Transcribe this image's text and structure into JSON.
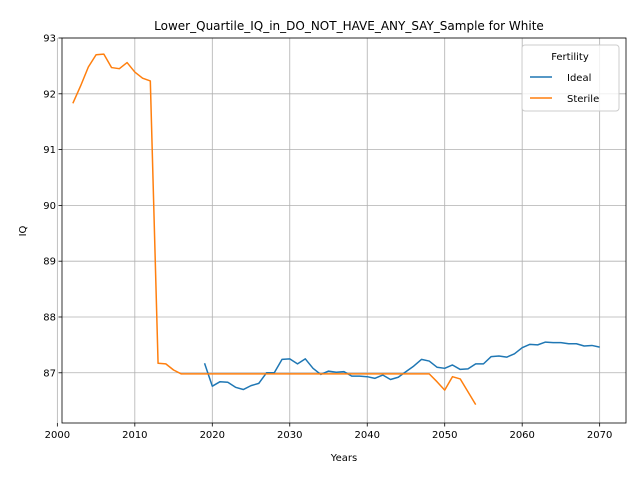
{
  "chart_data": {
    "type": "line",
    "title": "Lower_Quartile_IQ_in_DO_NOT_HAVE_ANY_SAY_Sample for White",
    "xlabel": "Years",
    "ylabel": "IQ",
    "xlim": [
      2000.6,
      2073.4
    ],
    "ylim": [
      86.1,
      93.0
    ],
    "xticks": [
      2000,
      2010,
      2020,
      2030,
      2040,
      2050,
      2060,
      2070
    ],
    "yticks": [
      87,
      88,
      89,
      90,
      91,
      92,
      93
    ],
    "grid": true,
    "legend": {
      "title": "Fertility",
      "placement": "top-right"
    },
    "series": [
      {
        "name": "Ideal",
        "color": "#1f77b4",
        "x": [
          2019,
          2020,
          2021,
          2022,
          2023,
          2024,
          2025,
          2026,
          2027,
          2028,
          2029,
          2030,
          2031,
          2032,
          2033,
          2034,
          2035,
          2036,
          2037,
          2038,
          2039,
          2040,
          2041,
          2042,
          2043,
          2044,
          2045,
          2046,
          2047,
          2048,
          2049,
          2050,
          2051,
          2052,
          2053,
          2054,
          2055,
          2056,
          2057,
          2058,
          2059,
          2060,
          2061,
          2062,
          2063,
          2064,
          2065,
          2066,
          2067,
          2068,
          2069,
          2070
        ],
        "y": [
          87.17,
          86.76,
          86.84,
          86.83,
          86.74,
          86.7,
          86.77,
          86.81,
          87.0,
          87.0,
          87.24,
          87.25,
          87.16,
          87.25,
          87.08,
          86.97,
          87.03,
          87.01,
          87.02,
          86.94,
          86.94,
          86.93,
          86.9,
          86.96,
          86.88,
          86.92,
          87.02,
          87.12,
          87.24,
          87.21,
          87.1,
          87.08,
          87.14,
          87.06,
          87.07,
          87.16,
          87.16,
          87.29,
          87.3,
          87.28,
          87.34,
          87.45,
          87.51,
          87.5,
          87.55,
          87.54,
          87.54,
          87.52,
          87.52,
          87.48,
          87.49,
          87.46
        ]
      },
      {
        "name": "Sterile",
        "color": "#ff7f0e",
        "x": [
          2002,
          2003,
          2004,
          2005,
          2006,
          2007,
          2008,
          2009,
          2010,
          2011,
          2012,
          2013,
          2014,
          2015,
          2016,
          2017,
          2018,
          2019,
          2020,
          2021,
          2022,
          2023,
          2024,
          2025,
          2026,
          2027,
          2028,
          2029,
          2030,
          2031,
          2032,
          2033,
          2034,
          2035,
          2036,
          2037,
          2038,
          2039,
          2040,
          2041,
          2042,
          2043,
          2044,
          2045,
          2046,
          2047,
          2048,
          2049,
          2050,
          2051,
          2052,
          2053,
          2054
        ],
        "y": [
          91.83,
          92.14,
          92.48,
          92.7,
          92.71,
          92.47,
          92.45,
          92.56,
          92.39,
          92.28,
          92.23,
          87.17,
          87.16,
          87.05,
          86.98,
          86.98,
          86.98,
          86.98,
          86.98,
          86.98,
          86.98,
          86.98,
          86.98,
          86.98,
          86.98,
          86.98,
          86.98,
          86.98,
          86.98,
          86.98,
          86.98,
          86.98,
          86.98,
          86.98,
          86.98,
          86.98,
          86.98,
          86.98,
          86.98,
          86.98,
          86.98,
          86.98,
          86.98,
          86.98,
          86.98,
          86.98,
          86.98,
          86.84,
          86.69,
          86.93,
          86.89,
          86.66,
          86.43
        ]
      }
    ]
  }
}
